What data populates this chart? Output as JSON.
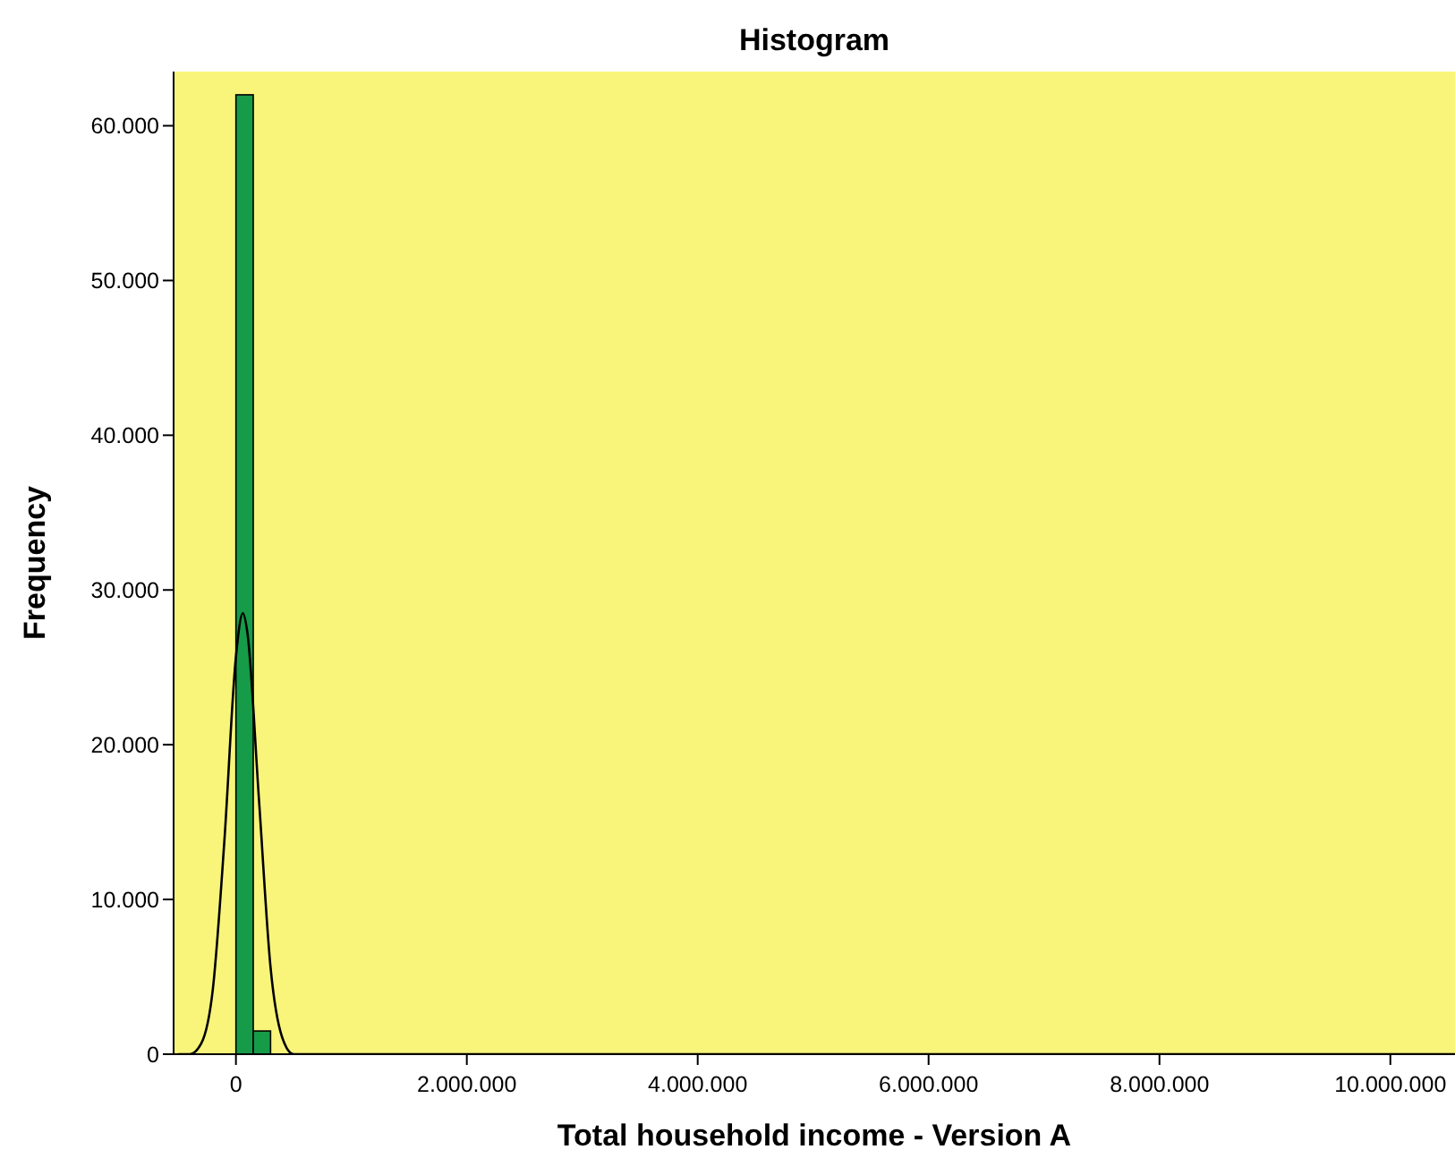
{
  "chart_data": {
    "type": "histogram",
    "title": "Histogram",
    "xlabel": "Total household income - Version A",
    "ylabel": "Frequency",
    "bins": [
      0,
      150000,
      300000
    ],
    "series": [
      {
        "color": "#169b48",
        "values": [
          62000,
          1500
        ]
      },
      {
        "type": "line",
        "color": "#000000",
        "x": [
          -500000,
          -400000,
          -300000,
          -200000,
          -100000,
          0,
          60000,
          100000,
          200000,
          300000,
          400000,
          500000,
          10560000
        ],
        "values": [
          0,
          0,
          700,
          4200,
          13800,
          25700,
          28500,
          27200,
          16400,
          5600,
          1100,
          0,
          0
        ]
      }
    ],
    "xlim": [
      -540000,
      10560000
    ],
    "xticks": [
      0,
      {
        "value": 2000000,
        "label": "2.000.000"
      },
      {
        "value": 4000000,
        "label": "4.000.000"
      },
      {
        "value": 6000000,
        "label": "6.000.000"
      },
      {
        "value": 8000000,
        "label": "8.000.000"
      },
      {
        "value": 10000000,
        "label": "10.000.000"
      }
    ],
    "ylim": [
      0,
      63500
    ],
    "yticks": [
      0,
      {
        "value": 10000,
        "label": "10.000"
      },
      {
        "value": 20000,
        "label": "20.000"
      },
      {
        "value": 30000,
        "label": "30.000"
      },
      {
        "value": 40000,
        "label": "40.000"
      },
      {
        "value": 50000,
        "label": "50.000"
      },
      {
        "value": 60000,
        "label": "60.000"
      }
    ],
    "grid": false
  }
}
